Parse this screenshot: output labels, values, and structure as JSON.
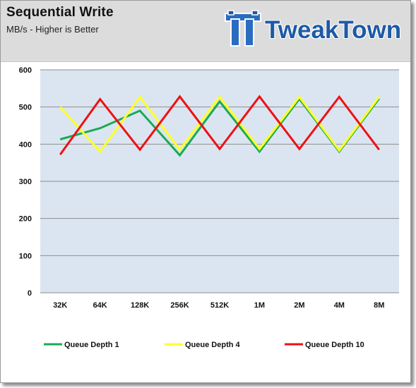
{
  "header": {
    "title": "Sequential Write",
    "subtitle": "MB/s - Higher is Better",
    "logo_text": "TweakTown"
  },
  "colors": {
    "plot_background": "#dbe5f1",
    "gridline": "#8c8c8c",
    "header_background": "#dcdcdc",
    "logo_blue": "#1d5aa6"
  },
  "chart_data": {
    "type": "line",
    "categories": [
      "32K",
      "64K",
      "128K",
      "256K",
      "512K",
      "1M",
      "2M",
      "4M",
      "8M"
    ],
    "ylim": [
      0,
      600
    ],
    "yticks": [
      0,
      100,
      200,
      300,
      400,
      500,
      600
    ],
    "grid": true,
    "legend_position": "bottom",
    "series": [
      {
        "name": "Queue Depth 1",
        "color": "#1aaa55",
        "values": [
          413,
          443,
          490,
          370,
          515,
          380,
          522,
          380,
          523
        ]
      },
      {
        "name": "Queue Depth 4",
        "color": "#ffff26",
        "values": [
          500,
          380,
          527,
          385,
          527,
          387,
          527,
          383,
          527
        ]
      },
      {
        "name": "Queue Depth 10",
        "color": "#ee1111",
        "values": [
          372,
          521,
          385,
          528,
          387,
          528,
          387,
          527,
          385
        ]
      }
    ]
  }
}
